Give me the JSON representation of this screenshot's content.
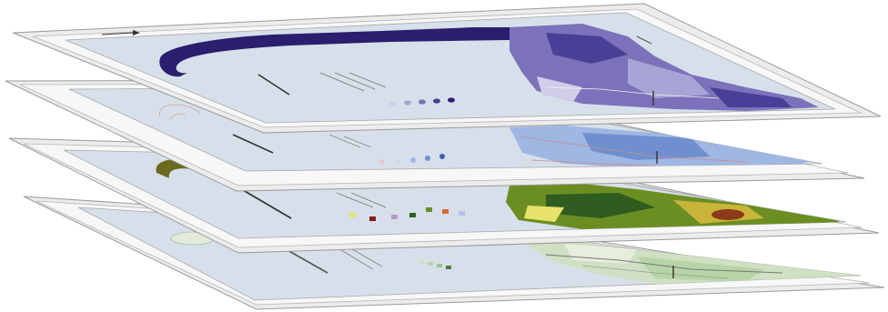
{
  "figure": {
    "description_free": true,
    "layers": [
      {
        "id": "layer-1",
        "theme": "purple",
        "colors": [
          "#2a1e6e",
          "#4a3f96",
          "#7b72bb",
          "#a9a4d6",
          "#cfcdea"
        ],
        "water": "#d9e2ec"
      },
      {
        "id": "layer-2",
        "theme": "blue",
        "colors": [
          "#3d5fb5",
          "#6f8fd0",
          "#9fb7e3",
          "#cfdaf0",
          "#e3c8d4"
        ],
        "water": "#d9e2ec"
      },
      {
        "id": "layer-3",
        "theme": "landcover",
        "colors": [
          "#2f5c1f",
          "#6b8e23",
          "#c9b43a",
          "#8b3a1a",
          "#b59bd0",
          "#e6e26a"
        ],
        "water": "#d9e2ec"
      },
      {
        "id": "layer-4",
        "theme": "base",
        "colors": [
          "#cfe0c3",
          "#b7d4a6",
          "#e8eedd",
          "#9fc48c",
          "#4f7c45"
        ],
        "water": "#d9e2ec"
      }
    ]
  }
}
